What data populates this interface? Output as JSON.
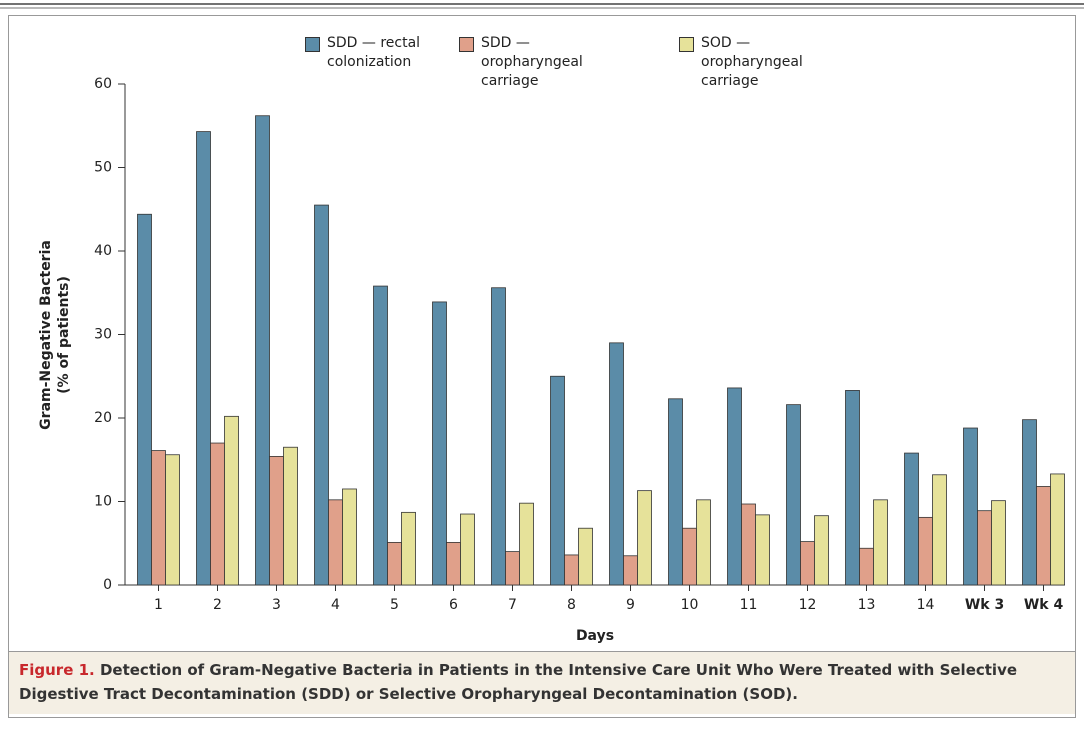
{
  "chart_data": {
    "type": "bar",
    "ylabel": [
      "Gram-Negative Bacteria",
      "(% of patients)"
    ],
    "xlabel": "Days",
    "categories": [
      "1",
      "2",
      "3",
      "4",
      "5",
      "6",
      "7",
      "8",
      "9",
      "10",
      "11",
      "12",
      "13",
      "14",
      "Wk 3",
      "Wk 4"
    ],
    "series": [
      {
        "name": "SDD — rectal colonization",
        "color": "#5b8ca8",
        "values": [
          44.4,
          54.3,
          56.2,
          45.5,
          35.8,
          33.9,
          35.6,
          25.0,
          29.0,
          22.3,
          23.6,
          21.6,
          23.3,
          15.8,
          18.8,
          19.8
        ]
      },
      {
        "name": "SDD — oropharyngeal carriage",
        "color": "#e0a08a",
        "values": [
          16.1,
          17.0,
          15.4,
          10.2,
          5.1,
          5.1,
          4.0,
          3.6,
          3.5,
          6.8,
          9.7,
          5.2,
          4.4,
          8.1,
          8.9,
          11.8
        ]
      },
      {
        "name": "SOD — oropharyngeal carriage",
        "color": "#e6e29a",
        "values": [
          15.6,
          20.2,
          16.5,
          11.5,
          8.7,
          8.5,
          9.8,
          6.8,
          11.3,
          10.2,
          8.4,
          8.3,
          10.2,
          13.2,
          10.1,
          13.3
        ]
      }
    ],
    "ylim": [
      0,
      60
    ],
    "yticks": [
      0,
      10,
      20,
      30,
      40,
      50,
      60
    ],
    "grid": false,
    "caption": {
      "label": "Figure 1.",
      "text": "Detection of Gram-Negative Bacteria in Patients in the Intensive Care Unit Who Were Treated with Selective Digestive Tract Decontamination (SDD) or Selective Oropharyngeal Decontamination (SOD)."
    }
  }
}
